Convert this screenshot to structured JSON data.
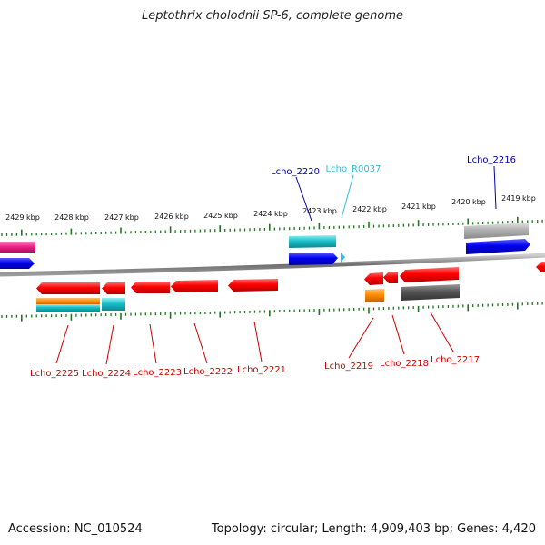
{
  "title": "Leptothrix cholodnii SP-6, complete genome",
  "footer": {
    "accession": "Accession: NC_010524",
    "summary": "Topology: circular; Length: 4,909,403 bp; Genes: 4,420"
  },
  "scale": {
    "ticks": [
      "2429 kbp",
      "2428 kbp",
      "2427 kbp",
      "2426 kbp",
      "2425 kbp",
      "2424 kbp",
      "2423 kbp",
      "2422 kbp",
      "2421 kbp",
      "2420 kbp",
      "2419 kbp"
    ]
  },
  "gene_labels": {
    "top": [
      "Lcho_2220",
      "Lcho_R0037",
      "Lcho_2216"
    ],
    "bottom": [
      "Lcho_2225",
      "Lcho_2224",
      "Lcho_2223",
      "Lcho_2222",
      "Lcho_2221",
      "Lcho_2219",
      "Lcho_2218",
      "Lcho_2217"
    ]
  },
  "colors": {
    "protein_gene": "#ff0000",
    "rna_gene": "#19c0c8",
    "forward_blue": "#0000ee",
    "pink": "#ee2288",
    "orange": "#ff8c00",
    "gray": "#555555",
    "light_gray": "#b0b0b0",
    "top_label": "#0000aa",
    "rna_label": "#33bbdd",
    "bottom_label": "#cc0000",
    "tick": "#1a7a1a"
  }
}
